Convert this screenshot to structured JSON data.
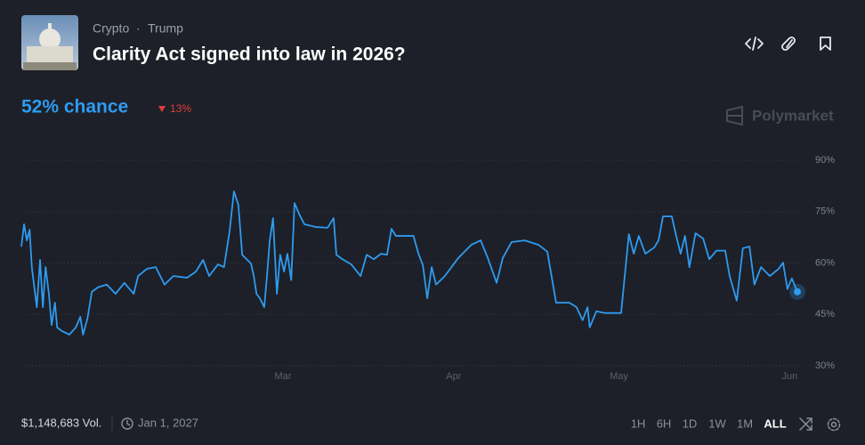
{
  "header": {
    "breadcrumb": [
      "Crypto",
      "Trump"
    ],
    "title": "Clarity Act signed into law in 2026?",
    "chance": "52% chance",
    "change": "13%",
    "brand": "Polymarket"
  },
  "footer": {
    "volume": "$1,148,683 Vol.",
    "end_date": "Jan 1, 2027",
    "ranges": [
      "1H",
      "6H",
      "1D",
      "1W",
      "1M",
      "ALL"
    ],
    "active_range": "ALL"
  },
  "chart_data": {
    "type": "line",
    "color": "#2e9bf0",
    "x": [
      -47.5,
      -47.0,
      -46.5,
      -46.0,
      -45.6,
      -44.7,
      -44.1,
      -43.6,
      -43.1,
      -42.5,
      -42.0,
      -41.4,
      -41.0,
      -40.1,
      -38.8,
      -37.6,
      -36.8,
      -36.3,
      -35.5,
      -34.7,
      -33.6,
      -32.0,
      -30.4,
      -28.8,
      -27.1,
      -26.3,
      -24.7,
      -23.1,
      -21.5,
      -19.9,
      -17.4,
      -15.8,
      -14.5,
      -13.4,
      -11.8,
      -10.7,
      -9.7,
      -8.9,
      -8.1,
      -7.4,
      -5.8,
      -5.3,
      -4.8,
      -4.2,
      -3.4,
      -2.9,
      -2.4,
      -1.8,
      -1.1,
      -0.5,
      0.2,
      0.8,
      1.5,
      2.1,
      2.9,
      3.9,
      6.0,
      8.1,
      9.2,
      9.7,
      10.8,
      12.4,
      14.1,
      15.2,
      16.5,
      17.8,
      18.9,
      19.7,
      20.5,
      22.1,
      23.7,
      24.6,
      25.4,
      26.2,
      27.0,
      27.8,
      29.4,
      31.8,
      34.2,
      35.9,
      37.2,
      38.8,
      39.9,
      41.5,
      43.9,
      46.4,
      48.0,
      49.6,
      52.0,
      53.3,
      54.4,
      55.3,
      55.7,
      56.9,
      58.5,
      61.4,
      62.8,
      63.7,
      64.6,
      65.8,
      67.4,
      68.2,
      69.0,
      70.6,
      71.4,
      72.2,
      73.0,
      73.8,
      74.9,
      76.3,
      77.4,
      78.7,
      80.3,
      81.1,
      82.4,
      83.5,
      84.7,
      85.6,
      86.8,
      88.4,
      90.0,
      90.8,
      91.6,
      92.4,
      93.4
    ],
    "values": [
      64.8,
      71.3,
      66.6,
      69.7,
      58.8,
      47.1,
      60.9,
      47.1,
      58.8,
      51,
      41.9,
      48.4,
      41.2,
      40.1,
      39.1,
      41.2,
      44.3,
      39.1,
      43.8,
      51.6,
      52.9,
      53.7,
      51,
      54.2,
      51,
      56.2,
      58.3,
      58.8,
      53.7,
      56.2,
      55.7,
      57.5,
      60.9,
      56.2,
      59.6,
      58.8,
      69.2,
      80.9,
      77,
      62.4,
      59.8,
      56.2,
      51,
      49.7,
      47.1,
      56.2,
      66.6,
      73.1,
      51,
      62.4,
      57.5,
      62.7,
      55,
      77.5,
      74.4,
      71.3,
      70.5,
      70.3,
      73.1,
      62.4,
      61.1,
      59.6,
      56.2,
      62.4,
      61.1,
      62.7,
      62.4,
      70,
      67.9,
      67.9,
      67.9,
      62.7,
      59.4,
      49.7,
      58.8,
      53.7,
      56.2,
      61.4,
      65.3,
      66.6,
      61.4,
      54.2,
      61.4,
      66.1,
      66.6,
      65.3,
      63.3,
      48.4,
      48.4,
      47.1,
      43.3,
      47.1,
      41.2,
      45.9,
      45.4,
      45.4,
      68.4,
      62.7,
      67.9,
      62.7,
      64.5,
      66.6,
      73.6,
      73.6,
      67.9,
      62.7,
      67.9,
      58.8,
      68.7,
      67.1,
      61.1,
      63.6,
      63.6,
      56.2,
      49,
      64.3,
      64.8,
      53.7,
      58.8,
      56.2,
      58.3,
      60.1,
      52.4,
      55.5,
      51.6
    ],
    "xlim": [
      -47.5,
      93.4
    ],
    "xticks": [
      {
        "value": 0,
        "label": "Mar"
      },
      {
        "value": 31,
        "label": "Apr"
      },
      {
        "value": 61,
        "label": "May"
      },
      {
        "value": 92,
        "label": "Jun"
      }
    ],
    "ylim": [
      30,
      90
    ],
    "yticks": [
      {
        "value": 30,
        "label": "30%"
      },
      {
        "value": 45,
        "label": "45%"
      },
      {
        "value": 60,
        "label": "60%"
      },
      {
        "value": 75,
        "label": "75%"
      },
      {
        "value": 90,
        "label": "90%"
      }
    ],
    "grid": true
  }
}
